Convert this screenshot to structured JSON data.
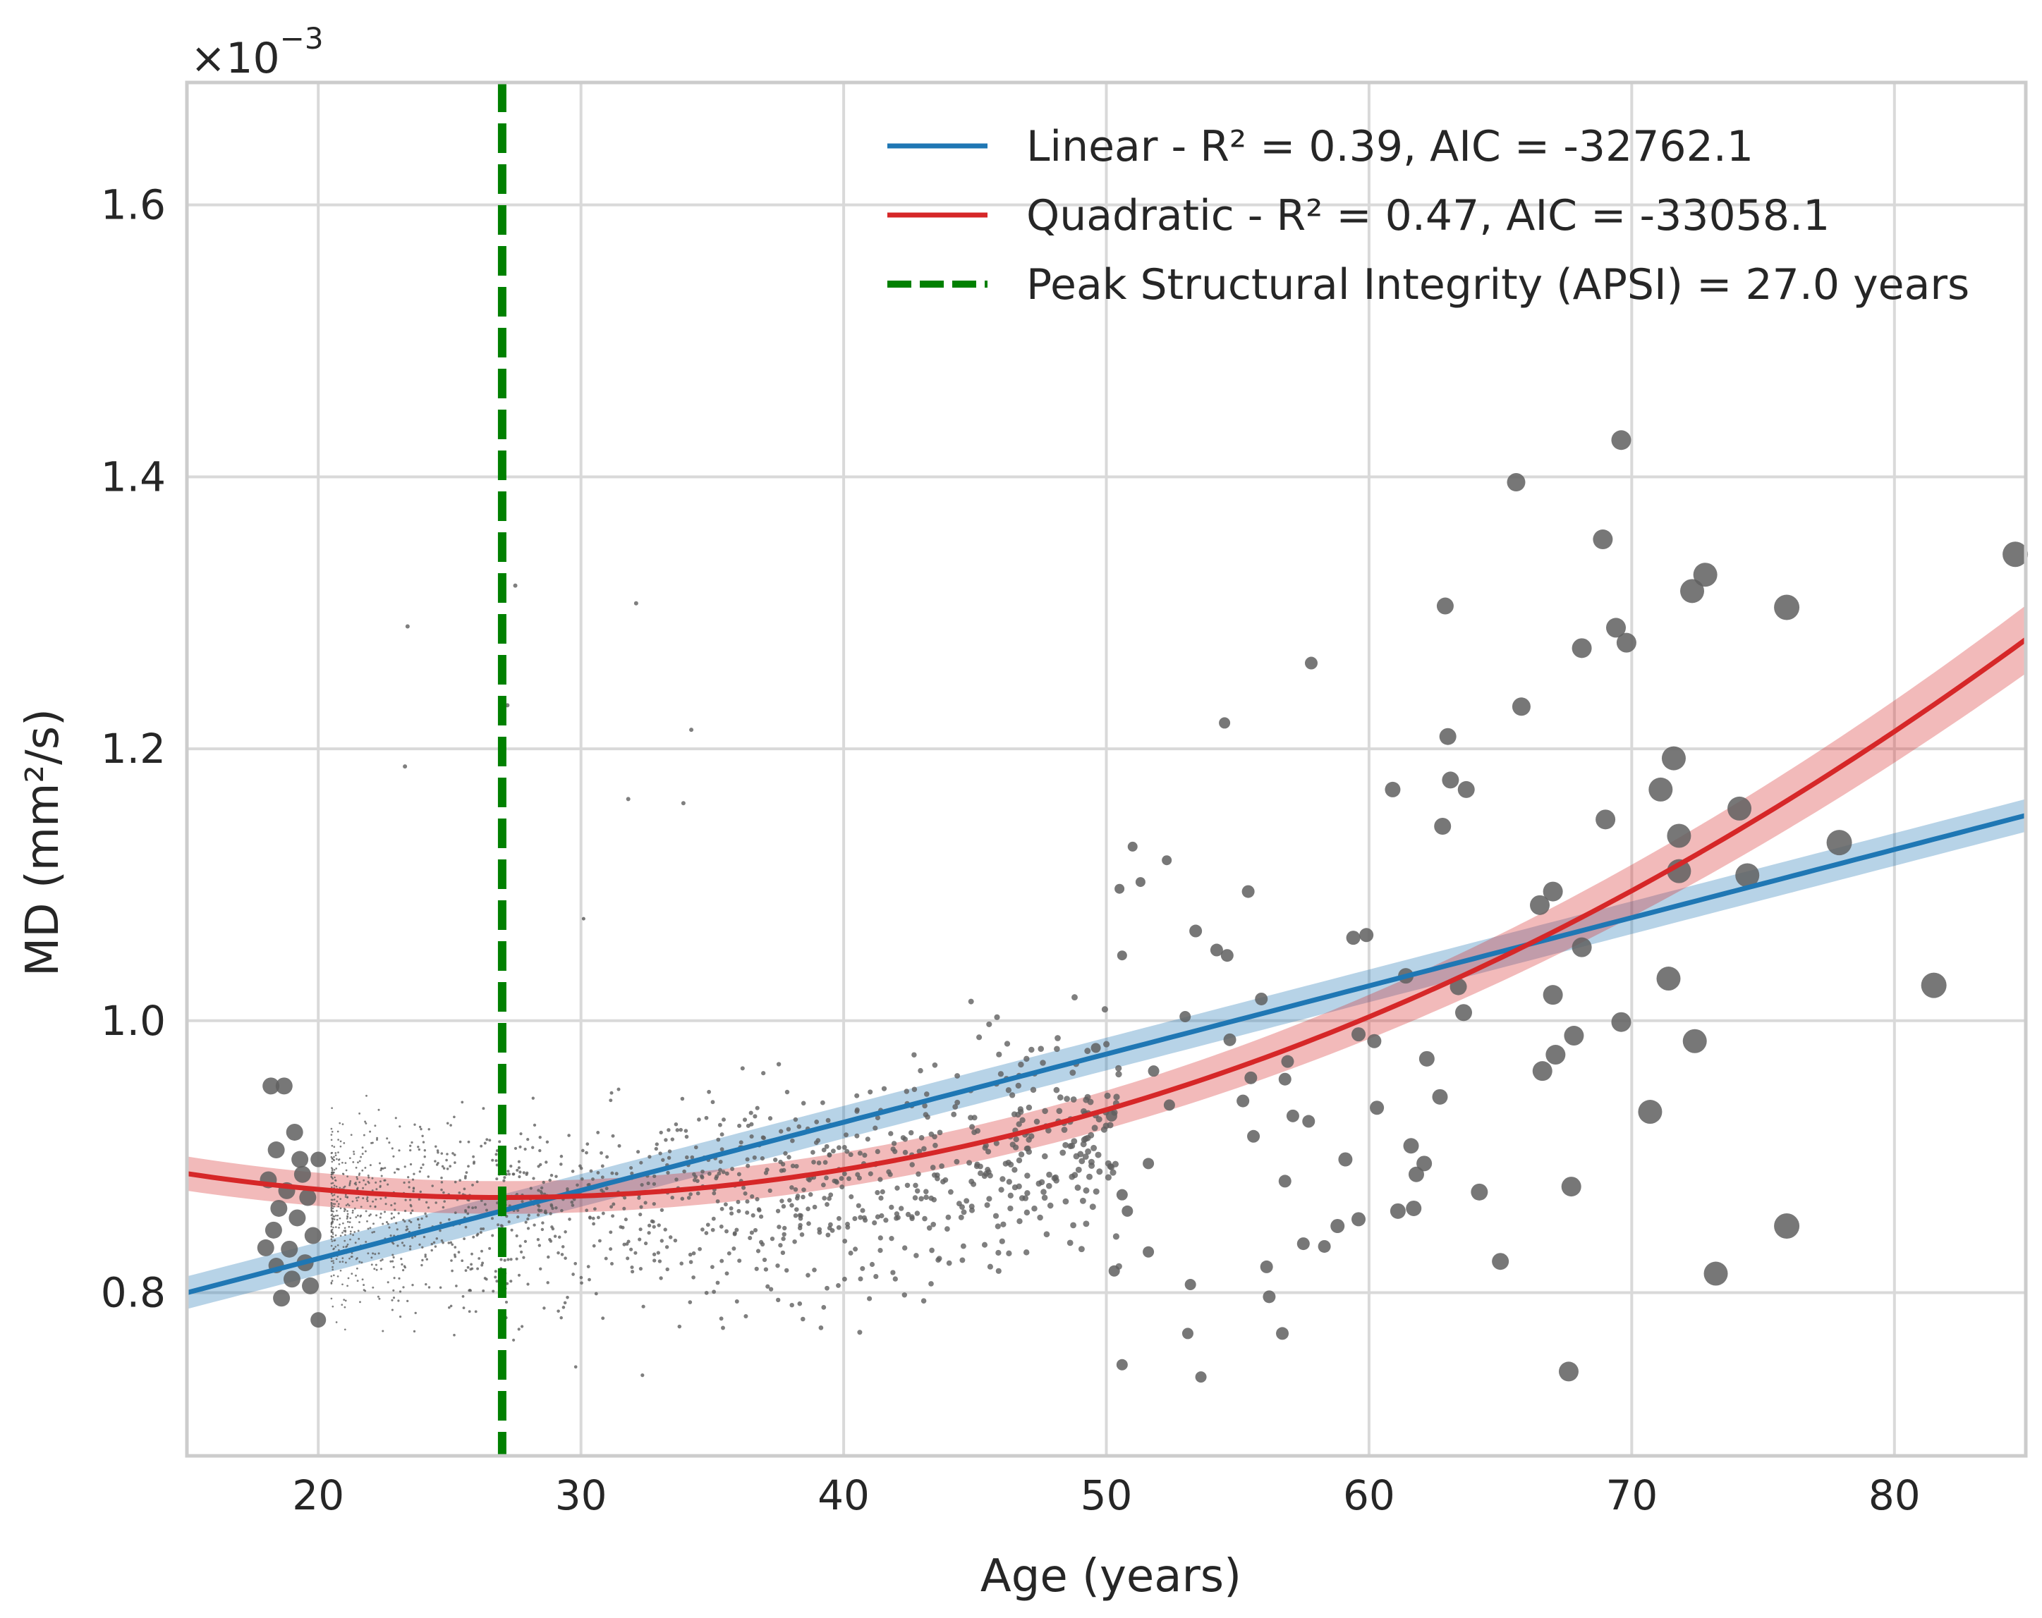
{
  "chart_data": {
    "type": "scatter",
    "xlabel": "Age (years)",
    "ylabel": "MD (mm²/s)",
    "y_offset_label": "×10",
    "y_offset_exponent": "−3",
    "xlim": [
      15,
      85
    ],
    "ylim": [
      0.68,
      1.69
    ],
    "xticks": [
      20,
      30,
      40,
      50,
      60,
      70,
      80
    ],
    "yticks": [
      0.8,
      1.0,
      1.2,
      1.4,
      1.6
    ],
    "ytick_labels": [
      "0.8",
      "1.0",
      "1.2",
      "1.4",
      "1.6"
    ],
    "grid": true,
    "legend_position": "top-right",
    "colors": {
      "points": "#5f5f5f",
      "linear": "#1f77b4",
      "quadratic": "#d62728",
      "peak": "#008000",
      "grid": "#d9d9d9",
      "frame": "#cccccc"
    },
    "series": [
      {
        "name": "Linear - R² = 0.39, AIC = -32762.1",
        "type": "line",
        "model": "linear",
        "x_range": [
          15,
          85
        ],
        "y_at_x_range": [
          0.8,
          1.151
        ],
        "ci_halfwidth": 0.012
      },
      {
        "name": "Quadratic - R² = 0.47, AIC = -33058.1",
        "type": "line",
        "model": "quadratic",
        "vertex_x": 27.0,
        "vertex_y": 0.87,
        "curvature": 0.000122,
        "ci_halfwidth_min": 0.012,
        "ci_halfwidth_max": 0.025
      },
      {
        "name": "Peak Structural Integrity (APSI) = 27.0 years",
        "type": "vline",
        "x": 27.0
      }
    ],
    "scatter_points": [
      [
        18.2,
        0.952,
        24
      ],
      [
        18.7,
        0.952,
        24
      ],
      [
        19.1,
        0.918,
        24
      ],
      [
        18.4,
        0.905,
        24
      ],
      [
        19.4,
        0.887,
        24
      ],
      [
        18.1,
        0.883,
        24
      ],
      [
        19.6,
        0.87,
        24
      ],
      [
        18.5,
        0.862,
        24
      ],
      [
        19.2,
        0.855,
        24
      ],
      [
        18.3,
        0.846,
        24
      ],
      [
        19.8,
        0.842,
        24
      ],
      [
        18.9,
        0.832,
        24
      ],
      [
        19.5,
        0.822,
        24
      ],
      [
        18.0,
        0.833,
        24
      ],
      [
        19.0,
        0.81,
        24
      ],
      [
        19.7,
        0.805,
        24
      ],
      [
        18.6,
        0.796,
        24
      ],
      [
        20.0,
        0.78,
        22
      ],
      [
        19.3,
        0.898,
        24
      ],
      [
        18.8,
        0.875,
        24
      ],
      [
        20.0,
        0.898,
        22
      ],
      [
        18.4,
        0.82,
        22
      ],
      [
        30.1,
        1.075,
        5
      ],
      [
        50.5,
        1.097,
        14
      ],
      [
        51.0,
        1.128,
        14
      ],
      [
        51.3,
        1.102,
        14
      ],
      [
        52.3,
        1.118,
        14
      ],
      [
        50.6,
        1.048,
        14
      ],
      [
        49.6,
        0.98,
        14
      ],
      [
        50.2,
        0.93,
        16
      ],
      [
        51.8,
        0.963,
        16
      ],
      [
        52.4,
        0.938,
        16
      ],
      [
        51.6,
        0.895,
        16
      ],
      [
        50.6,
        0.872,
        16
      ],
      [
        50.8,
        0.86,
        16
      ],
      [
        51.6,
        0.83,
        16
      ],
      [
        50.3,
        0.816,
        16
      ],
      [
        53.0,
        1.003,
        16
      ],
      [
        53.2,
        0.806,
        16
      ],
      [
        53.6,
        0.738,
        16
      ],
      [
        50.6,
        0.747,
        16
      ],
      [
        53.1,
        0.77,
        16
      ],
      [
        54.5,
        1.219,
        16
      ],
      [
        55.4,
        1.095,
        18
      ],
      [
        53.4,
        1.066,
        18
      ],
      [
        54.2,
        1.052,
        18
      ],
      [
        54.6,
        1.048,
        18
      ],
      [
        55.9,
        1.016,
        18
      ],
      [
        54.7,
        0.986,
        18
      ],
      [
        55.5,
        0.958,
        18
      ],
      [
        55.2,
        0.941,
        18
      ],
      [
        56.9,
        0.97,
        18
      ],
      [
        56.8,
        0.957,
        18
      ],
      [
        57.1,
        0.93,
        18
      ],
      [
        55.6,
        0.915,
        18
      ],
      [
        57.7,
        0.926,
        18
      ],
      [
        56.8,
        0.882,
        18
      ],
      [
        57.5,
        0.836,
        18
      ],
      [
        58.3,
        0.834,
        18
      ],
      [
        56.1,
        0.819,
        18
      ],
      [
        56.2,
        0.797,
        18
      ],
      [
        56.7,
        0.77,
        18
      ],
      [
        57.8,
        1.263,
        18
      ],
      [
        59.4,
        1.061,
        20
      ],
      [
        59.9,
        1.063,
        20
      ],
      [
        59.6,
        0.99,
        20
      ],
      [
        60.2,
        0.985,
        20
      ],
      [
        60.3,
        0.936,
        20
      ],
      [
        59.1,
        0.898,
        20
      ],
      [
        58.8,
        0.849,
        20
      ],
      [
        59.6,
        0.854,
        20
      ],
      [
        60.9,
        1.17,
        22
      ],
      [
        61.4,
        1.033,
        22
      ],
      [
        61.6,
        0.908,
        22
      ],
      [
        62.1,
        0.895,
        22
      ],
      [
        61.8,
        0.887,
        22
      ],
      [
        61.1,
        0.86,
        22
      ],
      [
        61.7,
        0.862,
        22
      ],
      [
        62.2,
        0.972,
        22
      ],
      [
        62.7,
        0.944,
        22
      ],
      [
        63.0,
        1.209,
        24
      ],
      [
        62.9,
        1.305,
        24
      ],
      [
        63.1,
        1.177,
        24
      ],
      [
        63.7,
        1.17,
        24
      ],
      [
        62.8,
        1.143,
        24
      ],
      [
        63.4,
        1.025,
        24
      ],
      [
        63.6,
        1.006,
        24
      ],
      [
        64.2,
        0.874,
        24
      ],
      [
        65.0,
        0.823,
        24
      ],
      [
        65.6,
        1.396,
        26
      ],
      [
        65.8,
        1.231,
        26
      ],
      [
        66.5,
        1.085,
        28
      ],
      [
        67.0,
        1.095,
        28
      ],
      [
        67.0,
        1.019,
        28
      ],
      [
        67.1,
        0.975,
        28
      ],
      [
        66.6,
        0.963,
        28
      ],
      [
        67.8,
        0.989,
        28
      ],
      [
        67.7,
        0.878,
        28
      ],
      [
        67.6,
        0.742,
        28
      ],
      [
        68.1,
        1.274,
        28
      ],
      [
        68.9,
        1.354,
        28
      ],
      [
        69.4,
        1.289,
        28
      ],
      [
        69.0,
        1.148,
        28
      ],
      [
        69.8,
        1.278,
        28
      ],
      [
        69.6,
        0.999,
        28
      ],
      [
        68.1,
        1.054,
        28
      ],
      [
        69.6,
        1.427,
        28
      ],
      [
        70.7,
        0.933,
        34
      ],
      [
        71.1,
        1.17,
        34
      ],
      [
        71.6,
        1.193,
        34
      ],
      [
        71.4,
        1.031,
        34
      ],
      [
        71.8,
        1.136,
        34
      ],
      [
        71.8,
        1.11,
        34
      ],
      [
        72.3,
        1.316,
        34
      ],
      [
        72.8,
        1.328,
        34
      ],
      [
        72.4,
        0.985,
        34
      ],
      [
        73.2,
        0.814,
        34
      ],
      [
        74.1,
        1.156,
        34
      ],
      [
        74.4,
        1.107,
        34
      ],
      [
        75.9,
        1.304,
        36
      ],
      [
        75.9,
        0.849,
        36
      ],
      [
        77.9,
        1.131,
        36
      ],
      [
        81.5,
        1.026,
        36
      ],
      [
        84.6,
        1.343,
        36
      ]
    ]
  }
}
